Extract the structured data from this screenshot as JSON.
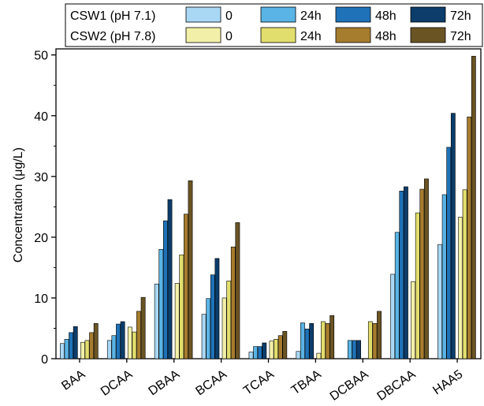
{
  "chart_data": {
    "type": "bar",
    "title": "",
    "xlabel": "",
    "ylabel": "Concentration (μg/L)",
    "ylim": [
      0,
      51
    ],
    "yticks": [
      0,
      10,
      20,
      30,
      40,
      50
    ],
    "categories": [
      "BAA",
      "DCAA",
      "DBAA",
      "BCAA",
      "TCAA",
      "TBAA",
      "DCBAA",
      "DBCAA",
      "HAA5"
    ],
    "legend": {
      "placement": "top",
      "groups": [
        "CSW1 (pH 7.1)",
        "CSW2 (pH 7.8)"
      ],
      "time_labels": [
        "0",
        "24h",
        "48h",
        "72h"
      ]
    },
    "series": [
      {
        "name": "0",
        "group": "CSW1 (pH 7.1)",
        "color": "#a9d8f5",
        "values": [
          2.5,
          3.0,
          12.3,
          7.3,
          1.1,
          1.2,
          0,
          13.9,
          18.8
        ]
      },
      {
        "name": "24h",
        "group": "CSW1 (pH 7.1)",
        "color": "#5ab4e5",
        "values": [
          3.2,
          3.8,
          18.0,
          9.9,
          2.0,
          5.9,
          3.0,
          20.8,
          27.0
        ]
      },
      {
        "name": "48h",
        "group": "CSW1 (pH 7.1)",
        "color": "#1f72b8",
        "values": [
          4.3,
          5.7,
          22.7,
          13.8,
          2.0,
          4.9,
          3.0,
          27.6,
          34.8
        ]
      },
      {
        "name": "72h",
        "group": "CSW1 (pH 7.1)",
        "color": "#0c3d6b",
        "values": [
          5.3,
          6.1,
          26.2,
          16.5,
          2.6,
          5.8,
          3.0,
          28.3,
          40.4
        ]
      },
      {
        "name": "0",
        "group": "CSW2 (pH 7.8)",
        "color": "#f2f0a8",
        "values": [
          2.7,
          5.2,
          12.4,
          10.0,
          2.9,
          0.9,
          0,
          12.7,
          23.3
        ]
      },
      {
        "name": "24h",
        "group": "CSW2 (pH 7.8)",
        "color": "#e2de6e",
        "values": [
          3.0,
          4.4,
          17.1,
          12.8,
          3.2,
          6.1,
          6.1,
          24.0,
          27.8
        ]
      },
      {
        "name": "48h",
        "group": "CSW2 (pH 7.8)",
        "color": "#a67c2e",
        "values": [
          4.3,
          7.8,
          23.8,
          18.4,
          3.8,
          5.8,
          5.8,
          27.9,
          39.8
        ]
      },
      {
        "name": "72h",
        "group": "CSW2 (pH 7.8)",
        "color": "#6b5424",
        "values": [
          5.8,
          10.1,
          29.3,
          22.4,
          4.5,
          7.1,
          7.8,
          29.6,
          49.8
        ]
      }
    ]
  }
}
